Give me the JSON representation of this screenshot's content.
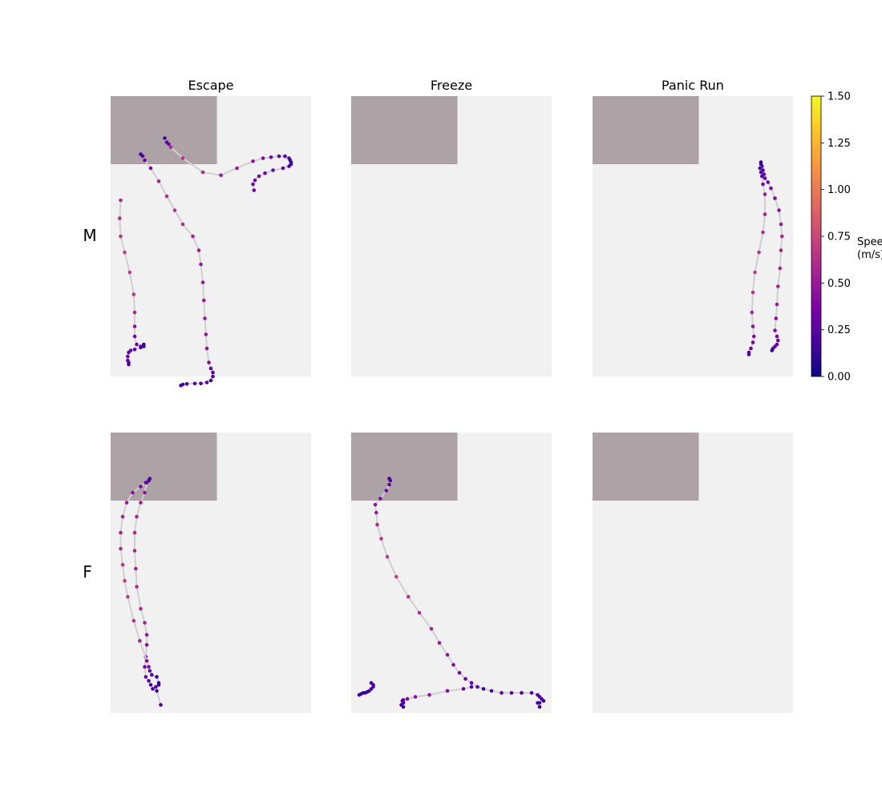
{
  "chart_data": {
    "type": "scatter",
    "description_units": "arena coordinates 0-100 (x) and 0-140 (y, 0 = top); point value = speed in m/s",
    "columns": [
      "Escape",
      "Freeze",
      "Panic Run"
    ],
    "rows": [
      "M",
      "F"
    ],
    "colorbar": {
      "label_line1": "Speed",
      "label_line2": "(m/s)",
      "range": [
        0,
        1.5
      ],
      "ticks": [
        "0.00",
        "0.25",
        "0.50",
        "0.75",
        "1.00",
        "1.25",
        "1.50"
      ],
      "colormap": "plasma"
    },
    "colors": {
      "arena_background": "#f1f1f1",
      "shelter": "#ada3a6",
      "trail": "#cfcfcf"
    },
    "shelter_region": {
      "x": [
        0,
        53
      ],
      "y": [
        0,
        34
      ]
    },
    "panels": [
      {
        "row": "M",
        "column": "Escape",
        "tracks": [
          [
            [
              27,
              21,
              0.15
            ],
            [
              28,
              23,
              0.2
            ],
            [
              29,
              24,
              0.3
            ],
            [
              30,
              25.5,
              0.6
            ],
            [
              36,
              31,
              0.65
            ],
            [
              46,
              38,
              0.6
            ],
            [
              55,
              39.5,
              0.5
            ],
            [
              63,
              36,
              0.5
            ],
            [
              71,
              32.5,
              0.45
            ],
            [
              76,
              31,
              0.4
            ],
            [
              80,
              30.5,
              0.35
            ],
            [
              84,
              30,
              0.3
            ],
            [
              87,
              30,
              0.25
            ],
            [
              89,
              31,
              0.2
            ],
            [
              89.5,
              32,
              0.15
            ],
            [
              90,
              33,
              0.15
            ],
            [
              90,
              34,
              0.15
            ],
            [
              89,
              35,
              0.2
            ],
            [
              86,
              36,
              0.25
            ],
            [
              81,
              37,
              0.3
            ],
            [
              77,
              38.5,
              0.3
            ],
            [
              74,
              40,
              0.35
            ],
            [
              72,
              42,
              0.35
            ],
            [
              71,
              44,
              0.3
            ],
            [
              71.5,
              47,
              0.3
            ]
          ],
          [
            [
              15,
              29,
              0.15
            ],
            [
              16,
              30,
              0.2
            ],
            [
              17,
              32,
              0.3
            ],
            [
              20,
              36,
              0.4
            ],
            [
              24,
              42.5,
              0.55
            ],
            [
              28,
              50,
              0.6
            ],
            [
              32,
              57,
              0.65
            ],
            [
              36,
              64,
              0.6
            ],
            [
              41,
              70,
              0.55
            ],
            [
              44,
              77,
              0.5
            ],
            [
              45,
              84,
              0.5
            ],
            [
              46,
              93,
              0.5
            ],
            [
              46.5,
              102,
              0.5
            ],
            [
              47,
              111,
              0.5
            ],
            [
              47.5,
              119,
              0.5
            ],
            [
              48,
              126,
              0.45
            ],
            [
              49,
              133,
              0.4
            ],
            [
              50,
              136,
              0.3
            ],
            [
              51,
              138,
              0.25
            ],
            [
              51,
              140,
              0.2
            ],
            [
              50,
              142,
              0.2
            ],
            [
              48,
              143,
              0.2
            ],
            [
              45,
              143.5,
              0.2
            ],
            [
              42,
              143.5,
              0.2
            ],
            [
              38,
              143.7,
              0.2
            ],
            [
              36,
              144,
              0.2
            ],
            [
              35,
              144.5,
              0.15
            ]
          ],
          [
            [
              5,
              52,
              0.6
            ],
            [
              4.5,
              61,
              0.6
            ],
            [
              5,
              70,
              0.65
            ],
            [
              7,
              78,
              0.7
            ],
            [
              9.5,
              88,
              0.7
            ],
            [
              11.5,
              99,
              0.65
            ],
            [
              12,
              108,
              0.55
            ],
            [
              12,
              115,
              0.45
            ],
            [
              12,
              120,
              0.35
            ],
            [
              13,
              124,
              0.3
            ],
            [
              15,
              125,
              0.2
            ],
            [
              16.5,
              125,
              0.15
            ],
            [
              16.5,
              124,
              0.1
            ],
            [
              15,
              125.5,
              0.2
            ],
            [
              12,
              126.5,
              0.25
            ],
            [
              10,
              127,
              0.25
            ],
            [
              9,
              128,
              0.3
            ],
            [
              8.5,
              130,
              0.3
            ],
            [
              8.5,
              132,
              0.3
            ],
            [
              9,
              133,
              0.25
            ],
            [
              9,
              134,
              0.2
            ]
          ]
        ]
      },
      {
        "row": "M",
        "column": "Freeze",
        "tracks": []
      },
      {
        "row": "M",
        "column": "Panic Run",
        "tracks": [
          [
            [
              84,
              33,
              0.1
            ],
            [
              84.5,
              35,
              0.15
            ],
            [
              85,
              37,
              0.15
            ],
            [
              85.5,
              39,
              0.2
            ],
            [
              86,
              41,
              0.25
            ],
            [
              87.5,
              43,
              0.3
            ],
            [
              89,
              46,
              0.35
            ],
            [
              91,
              51,
              0.4
            ],
            [
              93,
              57,
              0.45
            ],
            [
              94,
              64,
              0.5
            ],
            [
              94.5,
              70,
              0.55
            ],
            [
              94,
              77,
              0.55
            ],
            [
              93.5,
              86,
              0.55
            ],
            [
              92.5,
              95,
              0.55
            ],
            [
              92,
              104,
              0.5
            ],
            [
              91.5,
              111,
              0.45
            ],
            [
              91,
              117,
              0.4
            ],
            [
              92,
              120,
              0.35
            ],
            [
              92.5,
              122,
              0.3
            ],
            [
              92,
              124,
              0.3
            ],
            [
              91,
              125,
              0.25
            ],
            [
              90,
              126,
              0.2
            ],
            [
              89.5,
              127,
              0.15
            ]
          ],
          [
            [
              84,
              34,
              0.15
            ],
            [
              83.5,
              36,
              0.2
            ],
            [
              84,
              38,
              0.2
            ],
            [
              84.5,
              40,
              0.25
            ],
            [
              85,
              44,
              0.35
            ],
            [
              86,
              49,
              0.5
            ],
            [
              86,
              59,
              0.55
            ],
            [
              85,
              68,
              0.6
            ],
            [
              83,
              78,
              0.65
            ],
            [
              81,
              88,
              0.7
            ],
            [
              80,
              98,
              0.65
            ],
            [
              79.5,
              108,
              0.55
            ],
            [
              80,
              115,
              0.45
            ],
            [
              80.5,
              120,
              0.4
            ],
            [
              80,
              123,
              0.35
            ],
            [
              79,
              126,
              0.3
            ],
            [
              78,
              128,
              0.25
            ],
            [
              78,
              129,
              0.2
            ]
          ]
        ]
      },
      {
        "row": "F",
        "column": "Escape",
        "tracks": [
          [
            [
              19.5,
              23,
              0.2
            ],
            [
              19,
              24,
              0.25
            ],
            [
              18,
              25,
              0.35
            ],
            [
              17,
              30,
              0.45
            ],
            [
              15,
              35,
              0.5
            ],
            [
              13,
              42,
              0.55
            ],
            [
              12,
              50,
              0.55
            ],
            [
              12,
              59,
              0.55
            ],
            [
              12.5,
              68,
              0.55
            ],
            [
              13,
              77,
              0.6
            ],
            [
              15,
              88,
              0.6
            ],
            [
              17,
              95,
              0.55
            ],
            [
              18,
              101,
              0.5
            ],
            [
              18,
              106,
              0.45
            ],
            [
              17.5,
              112,
              0.4
            ],
            [
              17,
              117,
              0.35
            ],
            [
              17.5,
              122,
              0.3
            ],
            [
              19,
              124,
              0.25
            ],
            [
              20,
              126,
              0.2
            ],
            [
              21,
              128,
              0.15
            ]
          ],
          [
            [
              19,
              24,
              0.2
            ],
            [
              17.5,
              25,
              0.3
            ],
            [
              15,
              27,
              0.4
            ],
            [
              11,
              30,
              0.45
            ],
            [
              8,
              35,
              0.5
            ],
            [
              6,
              42,
              0.55
            ],
            [
              5,
              50,
              0.55
            ],
            [
              5,
              58,
              0.6
            ],
            [
              6,
              66,
              0.65
            ],
            [
              7,
              74,
              0.7
            ],
            [
              8.5,
              82,
              0.7
            ],
            [
              11.5,
              94,
              0.65
            ],
            [
              14.5,
              104,
              0.55
            ],
            [
              18,
              114,
              0.45
            ],
            [
              19,
              117,
              0.35
            ],
            [
              19.5,
              119,
              0.3
            ],
            [
              20.5,
              121,
              0.2
            ],
            [
              23,
              122,
              0.15
            ],
            [
              24,
              125,
              0.1
            ],
            [
              24,
              126,
              0.15
            ],
            [
              22.5,
              127,
              0.2
            ],
            [
              23,
              129,
              0.15
            ],
            [
              25,
              136,
              0.2
            ]
          ]
        ]
      },
      {
        "row": "F",
        "column": "Freeze",
        "tracks": [
          [
            [
              19,
              23,
              0.15
            ],
            [
              19.5,
              24,
              0.2
            ],
            [
              19,
              26,
              0.3
            ],
            [
              17.5,
              29,
              0.35
            ],
            [
              14.5,
              33,
              0.4
            ],
            [
              12,
              36,
              0.45
            ],
            [
              12.5,
              40,
              0.5
            ],
            [
              13,
              46,
              0.6
            ],
            [
              15,
              53,
              0.65
            ],
            [
              18,
              62,
              0.7
            ],
            [
              22.5,
              72,
              0.7
            ],
            [
              28.5,
              82,
              0.65
            ],
            [
              34,
              90,
              0.6
            ],
            [
              40,
              98,
              0.55
            ],
            [
              44,
              105,
              0.5
            ],
            [
              48,
              111,
              0.45
            ],
            [
              51,
              116,
              0.4
            ],
            [
              54,
              120,
              0.35
            ],
            [
              57,
              123,
              0.3
            ],
            [
              60,
              125,
              0.25
            ],
            [
              63,
              127,
              0.2
            ],
            [
              66,
              128,
              0.15
            ],
            [
              70,
              129,
              0.2
            ],
            [
              75,
              130,
              0.25
            ],
            [
              80,
              130,
              0.25
            ],
            [
              85,
              130,
              0.2
            ],
            [
              90,
              130,
              0.2
            ],
            [
              93,
              131,
              0.2
            ],
            [
              94,
              132,
              0.2
            ],
            [
              95,
              133,
              0.15
            ],
            [
              96,
              134,
              0.15
            ],
            [
              94,
              135,
              0.2
            ],
            [
              93,
              135,
              0.15
            ],
            [
              94,
              137,
              0.15
            ]
          ],
          [
            [
              60,
              127,
              0.2
            ],
            [
              56,
              128,
              0.3
            ],
            [
              48,
              129,
              0.4
            ],
            [
              39,
              131,
              0.45
            ],
            [
              32,
              132,
              0.45
            ],
            [
              28,
              133,
              0.4
            ],
            [
              26,
              133.5,
              0.3
            ],
            [
              25.5,
              134,
              0.2
            ],
            [
              26,
              135,
              0.15
            ],
            [
              25,
              136,
              0.15
            ],
            [
              26,
              137,
              0.1
            ]
          ],
          [
            [
              10,
              125,
              0.15
            ],
            [
              11,
              126,
              0.15
            ],
            [
              11,
              127,
              0.2
            ],
            [
              10,
              128,
              0.2
            ],
            [
              9,
              129,
              0.2
            ],
            [
              7,
              130,
              0.2
            ],
            [
              5,
              130.5,
              0.15
            ],
            [
              4,
              131,
              0.15
            ],
            [
              6,
              130,
              0.1
            ],
            [
              8,
              129.5,
              0.1
            ]
          ]
        ]
      },
      {
        "row": "F",
        "column": "Panic Run",
        "tracks": []
      }
    ]
  }
}
